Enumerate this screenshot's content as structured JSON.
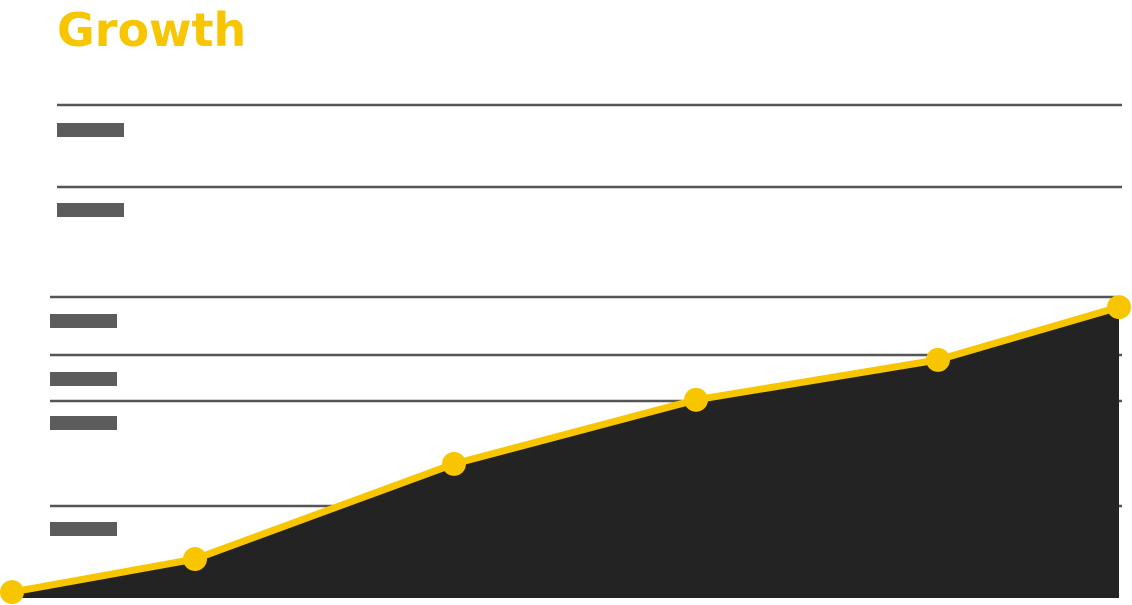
{
  "chart_data": {
    "type": "area",
    "title": "Growth",
    "values": [
      1.2,
      7.9,
      27.2,
      40.2,
      48.3,
      59.0
    ],
    "ylim": [
      0,
      100
    ],
    "color": "#f7c600",
    "fill": "#232323"
  }
}
